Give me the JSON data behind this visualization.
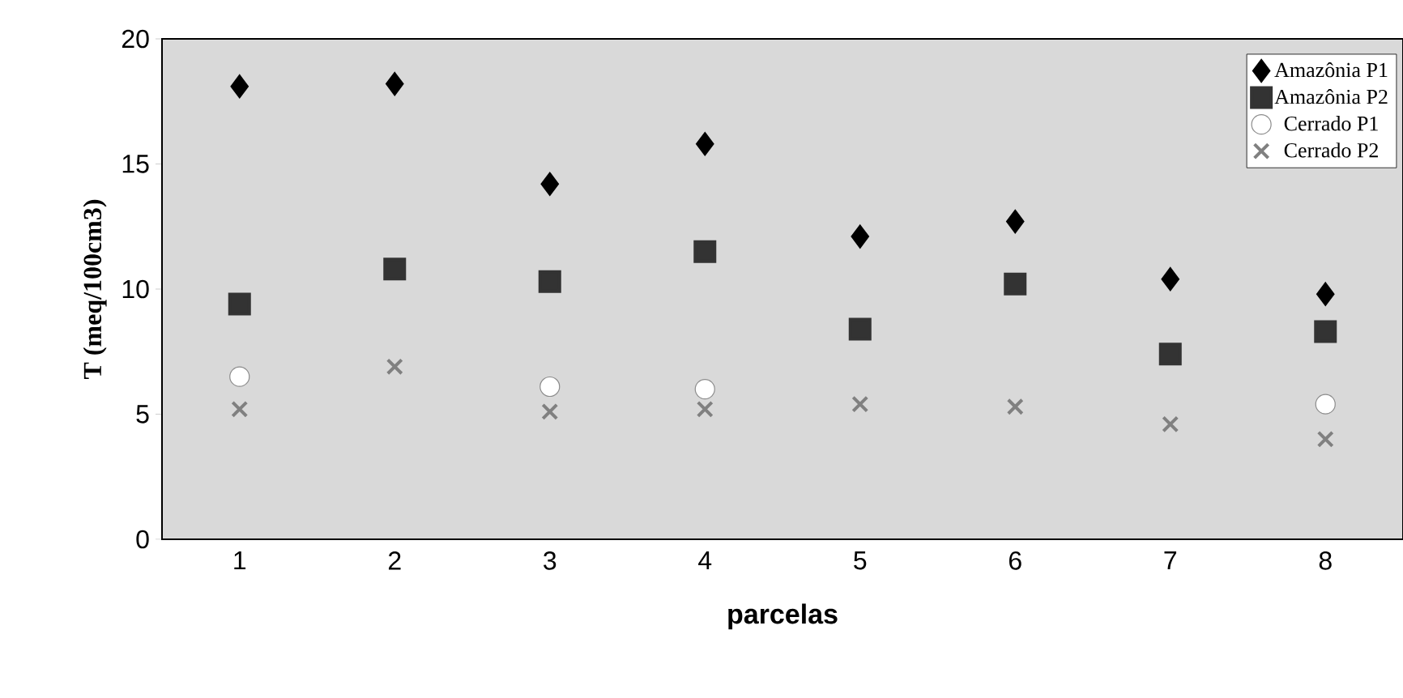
{
  "chart_data": {
    "type": "scatter",
    "xlabel": "parcelas",
    "ylabel": "T (meq/100cm3)",
    "categories": [
      "1",
      "2",
      "3",
      "4",
      "5",
      "6",
      "7",
      "8"
    ],
    "ylim": [
      0,
      20
    ],
    "yticks": [
      0,
      5,
      10,
      15,
      20
    ],
    "legend": "top right",
    "grid": false,
    "series": [
      {
        "name": "Amazônia P1",
        "color": "#000000",
        "marker": "diamond",
        "values": [
          18.1,
          18.2,
          14.2,
          15.8,
          12.1,
          12.7,
          10.4,
          9.8
        ]
      },
      {
        "name": "Amazônia P2",
        "color": "#333333",
        "marker": "square",
        "values": [
          9.4,
          10.8,
          10.3,
          11.5,
          8.4,
          10.2,
          7.4,
          8.3
        ]
      },
      {
        "name": "Cerrado P1",
        "color": "#ffffff",
        "marker": "circle",
        "values": [
          6.5,
          null,
          6.1,
          6.0,
          null,
          null,
          null,
          5.4
        ]
      },
      {
        "name": "Cerrado P2",
        "color": "#808080",
        "marker": "cross",
        "values": [
          5.2,
          6.9,
          5.1,
          5.2,
          5.4,
          5.3,
          4.6,
          4.0
        ]
      }
    ]
  }
}
